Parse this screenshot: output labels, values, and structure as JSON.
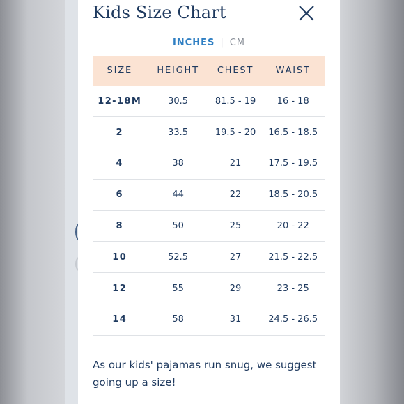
{
  "modal": {
    "title": "Kids Size Chart"
  },
  "units": {
    "inches_label": "INCHES",
    "separator": "|",
    "cm_label": "CM",
    "selected": "INCHES"
  },
  "table": {
    "headers": [
      "SIZE",
      "HEIGHT",
      "CHEST",
      "WAIST"
    ],
    "rows": [
      [
        "12-18M",
        "30.5",
        "81.5 - 19",
        "16 - 18"
      ],
      [
        "2",
        "33.5",
        "19.5 - 20",
        "16.5 - 18.5"
      ],
      [
        "4",
        "38",
        "21",
        "17.5 - 19.5"
      ],
      [
        "6",
        "44",
        "22",
        "18.5 - 20.5"
      ],
      [
        "8",
        "50",
        "25",
        "20 - 22"
      ],
      [
        "10",
        "52.5",
        "27",
        "21.5 - 22.5"
      ],
      [
        "12",
        "55",
        "29",
        "23 - 25"
      ],
      [
        "14",
        "58",
        "31",
        "24.5 - 26.5"
      ]
    ]
  },
  "note": "As our kids' pajamas run snug, we suggest going up a size!",
  "colors": {
    "text": "#1f3a5f",
    "accent": "#2f7fc3",
    "header_bg": "#fbe3d3"
  }
}
